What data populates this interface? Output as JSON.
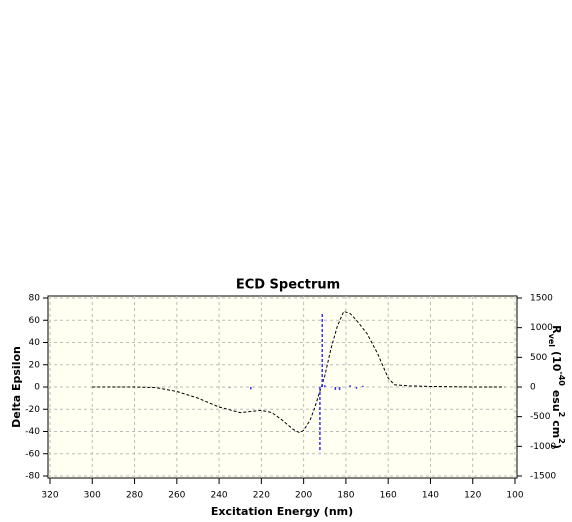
{
  "chart_data": {
    "type": "line",
    "title": "ECD Spectrum",
    "x_label": "Excitation Energy (nm)",
    "y_label": "Delta Epsilon",
    "y2_label": [
      "R",
      "vel",
      "(10",
      "-40",
      "esu",
      "2",
      "cm",
      "2",
      ")"
    ],
    "xlim": [
      320,
      100
    ],
    "xticks": [
      320,
      300,
      280,
      260,
      240,
      220,
      200,
      180,
      160,
      140,
      120,
      100
    ],
    "ylim": [
      -80,
      80
    ],
    "yticks": [
      -80,
      -60,
      -40,
      -20,
      0,
      20,
      40,
      60,
      80
    ],
    "y2lim": [
      -1500,
      1500
    ],
    "y2ticks": [
      -1500,
      -1000,
      -500,
      0,
      500,
      1000,
      1500
    ],
    "grid": true,
    "series": [
      {
        "color": "#000000",
        "x": [
          300,
          280,
          270,
          260,
          250,
          240,
          230,
          225,
          220,
          215,
          210,
          205,
          202,
          200,
          197,
          195,
          193,
          190,
          187,
          184,
          181,
          178,
          175,
          170,
          165,
          160,
          157,
          150,
          140,
          120,
          105
        ],
        "values": [
          0,
          0,
          -0.5,
          -4,
          -10,
          -18,
          -23,
          -22,
          -21,
          -23,
          -30,
          -38,
          -41,
          -39,
          -30,
          -20,
          -8,
          10,
          35,
          55,
          68,
          66,
          60,
          48,
          30,
          8,
          2,
          1,
          0.5,
          0,
          0
        ]
      },
      {
        "type": "stick",
        "axis": "y2",
        "color": "#3333ff",
        "x": [
          235,
          225,
          192.3,
          191.2,
          190,
          185,
          183,
          178,
          175,
          172
        ],
        "values": [
          -10,
          -40,
          -1100,
          1250,
          30,
          -60,
          -80,
          30,
          -30,
          20
        ]
      }
    ]
  }
}
